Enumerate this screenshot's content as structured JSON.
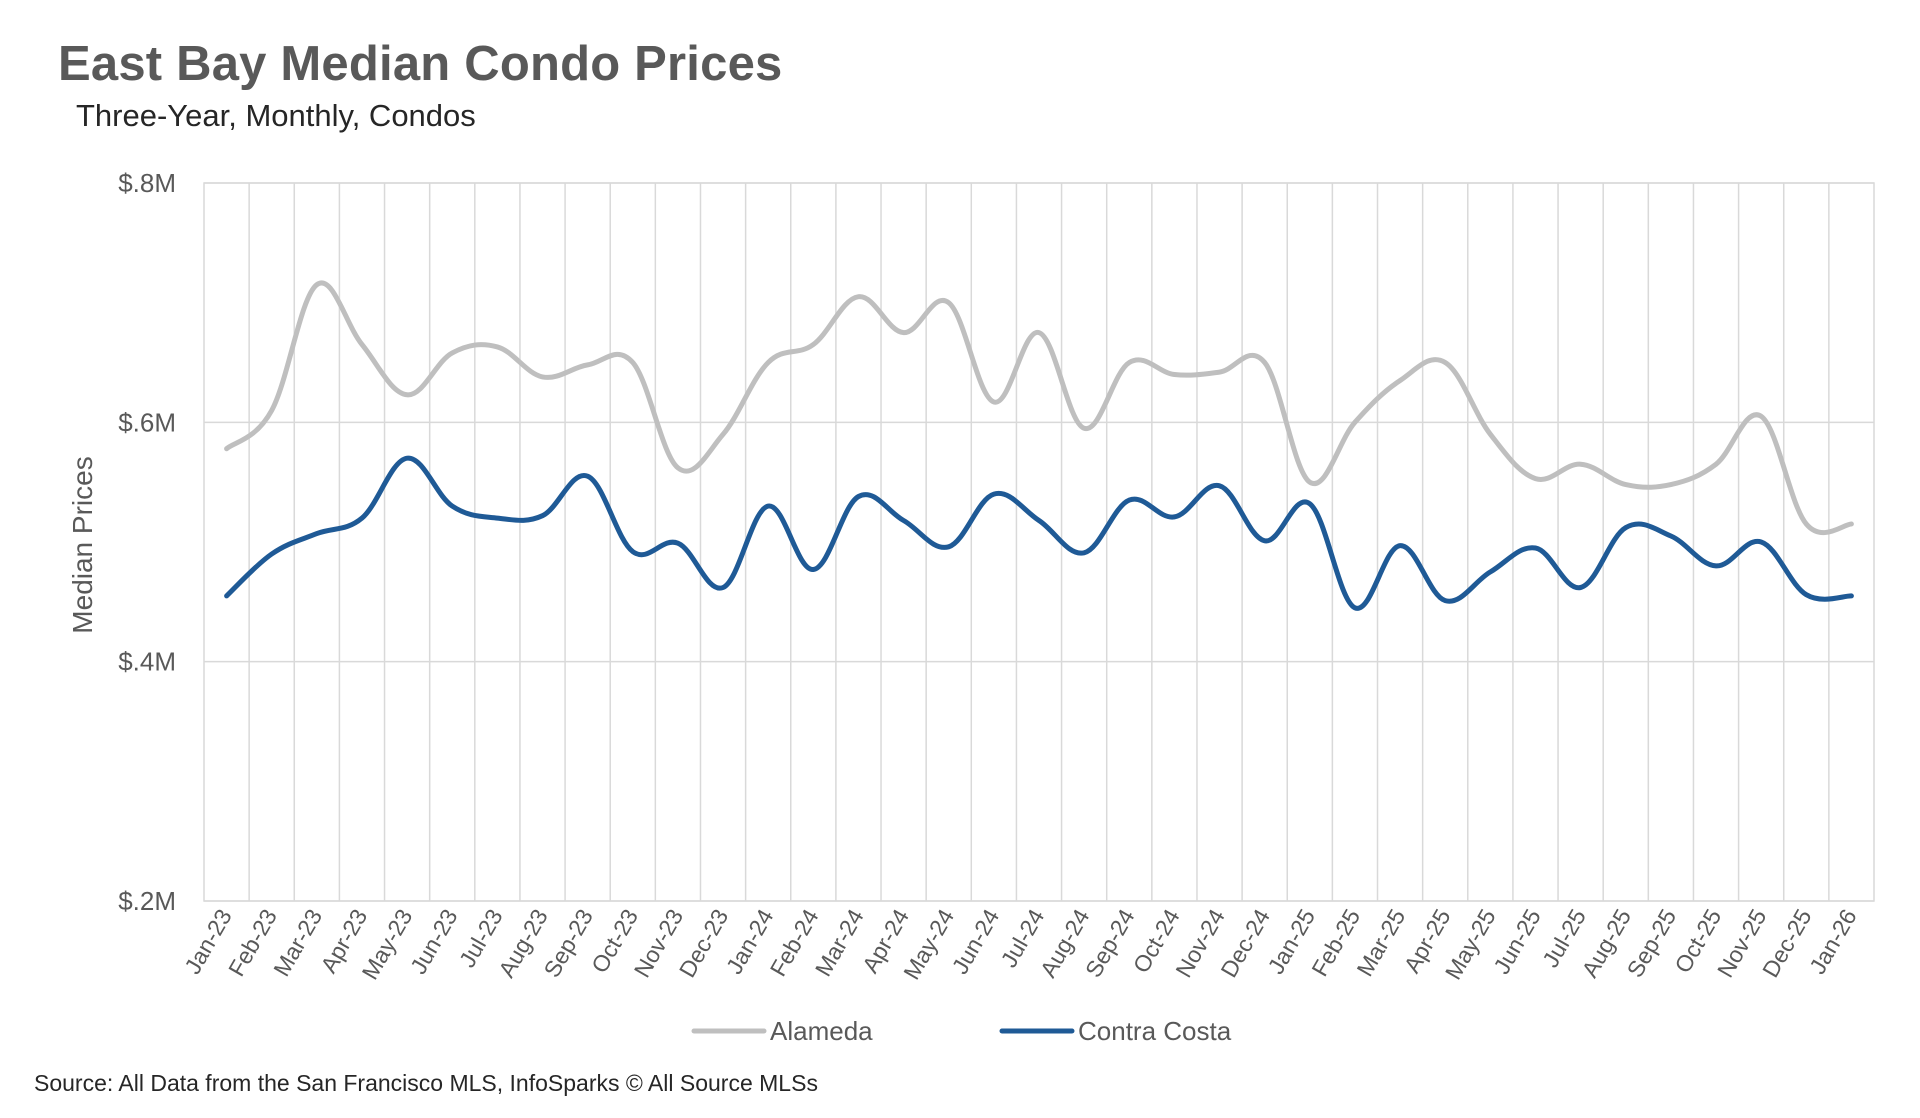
{
  "chart_data": {
    "type": "line",
    "title": "East Bay Median Condo Prices",
    "subtitle": "Three-Year, Monthly, Condos",
    "xlabel": "",
    "ylabel": "Median Prices",
    "ylim": [
      200000,
      800000
    ],
    "yticks": [
      200000,
      400000,
      600000,
      800000
    ],
    "ytick_labels": [
      "$.2M",
      "$.4M",
      "$.6M",
      "$.8M"
    ],
    "grid": true,
    "legend_position": "bottom",
    "categories": [
      "Jan-23",
      "Feb-23",
      "Mar-23",
      "Apr-23",
      "May-23",
      "Jun-23",
      "Jul-23",
      "Aug-23",
      "Sep-23",
      "Oct-23",
      "Nov-23",
      "Dec-23",
      "Jan-24",
      "Feb-24",
      "Mar-24",
      "Apr-24",
      "May-24",
      "Jun-24",
      "Jul-24",
      "Aug-24",
      "Sep-24",
      "Oct-24",
      "Nov-24",
      "Dec-24",
      "Jan-25",
      "Feb-25",
      "Mar-25",
      "Apr-25",
      "May-25",
      "Jun-25",
      "Jul-25",
      "Aug-25",
      "Sep-25",
      "Oct-25",
      "Nov-25",
      "Dec-25",
      "Jan-26"
    ],
    "series": [
      {
        "name": "Alameda",
        "color": "#bfbfbf",
        "values": [
          578000,
          610000,
          715000,
          665000,
          623000,
          658000,
          663000,
          638000,
          648000,
          650000,
          562000,
          590000,
          650000,
          665000,
          705000,
          675000,
          700000,
          617000,
          675000,
          595000,
          650000,
          640000,
          642000,
          650000,
          550000,
          600000,
          635000,
          650000,
          590000,
          553000,
          565000,
          548000,
          548000,
          565000,
          605000,
          515000,
          515000
        ]
      },
      {
        "name": "Contra Costa",
        "color": "#1f5a96",
        "values": [
          455000,
          490000,
          507000,
          520000,
          570000,
          530000,
          520000,
          522000,
          555000,
          492000,
          499000,
          462000,
          530000,
          477000,
          538000,
          518000,
          496000,
          540000,
          518000,
          491000,
          535000,
          521000,
          547000,
          501000,
          532000,
          445000,
          497000,
          451000,
          475000,
          495000,
          462000,
          512000,
          505000,
          480000,
          500000,
          456000,
          455000
        ]
      }
    ]
  },
  "source": "Source: All Data from the San Francisco MLS, InfoSparks © All Source MLSs"
}
